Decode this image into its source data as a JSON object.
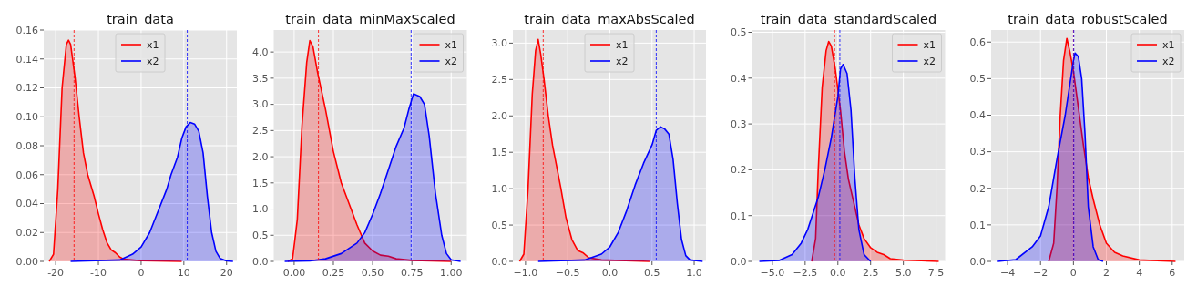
{
  "chart_data": [
    {
      "type": "area",
      "title": "train_data",
      "xlim": [
        -22.8,
        22.4
      ],
      "xticks": [
        -20,
        -10,
        0,
        10,
        20
      ],
      "ylim": [
        0,
        0.16
      ],
      "yticks": [
        {
          "value": 0,
          "label": "0.00"
        },
        0.02,
        0.04,
        0.06,
        0.08,
        {
          "value": 0.1,
          "label": "0.10"
        },
        0.12,
        0.14,
        0.16
      ],
      "grid": true,
      "legend": "top",
      "ref_lines": [
        {
          "axis": "x",
          "value": -15.7,
          "color": "#ff0000",
          "line_style": "dashed"
        },
        {
          "axis": "x",
          "value": 10.8,
          "color": "#0000ff",
          "line_style": "dashed"
        }
      ],
      "series": [
        {
          "name": "x1",
          "color": "#ff0000",
          "x": [
            -21.5,
            -20.5,
            -19.5,
            -18.5,
            -17.5,
            -17,
            -16.5,
            -15.5,
            -14.5,
            -13.5,
            -12.5,
            -11,
            -10,
            -9,
            -8,
            -7,
            -6,
            -5,
            -4,
            0,
            9.5
          ],
          "values": [
            0,
            0.005,
            0.05,
            0.12,
            0.15,
            0.153,
            0.15,
            0.128,
            0.1,
            0.075,
            0.06,
            0.045,
            0.033,
            0.022,
            0.013,
            0.008,
            0.006,
            0.003,
            0.0015,
            0.0005,
            0
          ]
        },
        {
          "name": "x2",
          "color": "#0000ff",
          "x": [
            -16.5,
            -5,
            -2,
            0,
            2,
            4,
            6,
            7,
            8.5,
            9.5,
            10.5,
            11.5,
            12.5,
            13.5,
            14.5,
            15.5,
            16.5,
            17.5,
            18.5,
            20,
            21.5
          ],
          "values": [
            0,
            0.001,
            0.005,
            0.01,
            0.02,
            0.035,
            0.05,
            0.06,
            0.072,
            0.085,
            0.093,
            0.096,
            0.095,
            0.09,
            0.075,
            0.045,
            0.02,
            0.007,
            0.002,
            0.0003,
            0
          ]
        }
      ]
    },
    {
      "type": "area",
      "title": "train_data_minMaxScaled",
      "xlim": [
        -0.13,
        1.1
      ],
      "xticks": [
        {
          "value": 0,
          "label": "0.00"
        },
        0.25,
        {
          "value": 0.5,
          "label": "0.50"
        },
        0.75,
        {
          "value": 1,
          "label": "1.00"
        }
      ],
      "ylim": [
        0,
        4.42
      ],
      "yticks": [
        {
          "value": 0,
          "label": "0.0"
        },
        0.5,
        {
          "value": 1,
          "label": "1.0"
        },
        1.5,
        {
          "value": 2,
          "label": "2.0"
        },
        2.5,
        {
          "value": 3,
          "label": "3.0"
        },
        3.5,
        {
          "value": 4,
          "label": "4.0"
        }
      ],
      "grid": true,
      "legend": "top right",
      "ref_lines": [
        {
          "axis": "x",
          "value": 0.155,
          "color": "#ff0000",
          "line_style": "dashed"
        },
        {
          "axis": "x",
          "value": 0.745,
          "color": "#0000ff",
          "line_style": "dashed"
        }
      ],
      "series": [
        {
          "name": "x1",
          "color": "#ff0000",
          "x": [
            -0.04,
            -0.01,
            0.02,
            0.05,
            0.08,
            0.1,
            0.12,
            0.15,
            0.2,
            0.25,
            0.3,
            0.35,
            0.4,
            0.45,
            0.5,
            0.55,
            0.6,
            0.65,
            0.75,
            1.0
          ],
          "values": [
            0,
            0.05,
            0.8,
            2.6,
            3.8,
            4.22,
            4.1,
            3.6,
            2.9,
            2.1,
            1.5,
            1.1,
            0.7,
            0.35,
            0.2,
            0.12,
            0.1,
            0.05,
            0.02,
            0
          ]
        },
        {
          "name": "x2",
          "color": "#0000ff",
          "x": [
            -0.06,
            0.1,
            0.2,
            0.3,
            0.4,
            0.45,
            0.5,
            0.55,
            0.6,
            0.65,
            0.7,
            0.73,
            0.76,
            0.8,
            0.83,
            0.86,
            0.9,
            0.94,
            0.97,
            1.0,
            1.06
          ],
          "values": [
            0,
            0.01,
            0.05,
            0.15,
            0.35,
            0.55,
            0.9,
            1.3,
            1.75,
            2.2,
            2.55,
            2.9,
            3.2,
            3.15,
            3.0,
            2.4,
            1.3,
            0.5,
            0.15,
            0.03,
            0
          ]
        }
      ]
    },
    {
      "type": "area",
      "title": "train_data_maxAbsScaled",
      "xlim": [
        -1.15,
        1.14
      ],
      "xticks": [
        {
          "value": -1,
          "label": "−1.0"
        },
        {
          "value": -0.5,
          "label": "−0.5"
        },
        {
          "value": 0,
          "label": "0.0"
        },
        0.5,
        {
          "value": 1,
          "label": "1.0"
        }
      ],
      "ylim": [
        0,
        3.18
      ],
      "yticks": [
        {
          "value": 0,
          "label": "0.0"
        },
        0.5,
        {
          "value": 1,
          "label": "1.0"
        },
        1.5,
        {
          "value": 2,
          "label": "2.0"
        },
        2.5,
        {
          "value": 3,
          "label": "3.0"
        }
      ],
      "grid": true,
      "legend": "top",
      "ref_lines": [
        {
          "axis": "x",
          "value": -0.79,
          "color": "#ff0000",
          "line_style": "dashed"
        },
        {
          "axis": "x",
          "value": 0.55,
          "color": "#0000ff",
          "line_style": "dashed"
        }
      ],
      "series": [
        {
          "name": "x1",
          "color": "#ff0000",
          "x": [
            -1.07,
            -1.02,
            -0.97,
            -0.92,
            -0.88,
            -0.85,
            -0.82,
            -0.78,
            -0.73,
            -0.68,
            -0.63,
            -0.58,
            -0.52,
            -0.45,
            -0.38,
            -0.32,
            -0.25,
            -0.1,
            0.47
          ],
          "values": [
            0,
            0.1,
            1.0,
            2.3,
            2.9,
            3.05,
            2.85,
            2.5,
            2.0,
            1.6,
            1.3,
            1.0,
            0.6,
            0.3,
            0.15,
            0.12,
            0.05,
            0.02,
            0
          ]
        },
        {
          "name": "x2",
          "color": "#0000ff",
          "x": [
            -0.85,
            -0.3,
            -0.1,
            0,
            0.1,
            0.2,
            0.3,
            0.4,
            0.5,
            0.55,
            0.6,
            0.65,
            0.7,
            0.75,
            0.8,
            0.85,
            0.9,
            0.95,
            1.1
          ],
          "values": [
            0,
            0.02,
            0.1,
            0.2,
            0.4,
            0.7,
            1.05,
            1.35,
            1.6,
            1.8,
            1.85,
            1.82,
            1.75,
            1.4,
            0.8,
            0.3,
            0.08,
            0.02,
            0
          ]
        }
      ]
    },
    {
      "type": "area",
      "title": "train_data_standardScaled",
      "xlim": [
        -6.56,
        8.19
      ],
      "xticks": [
        {
          "value": -5,
          "label": "−5.0"
        },
        {
          "value": -2.5,
          "label": "−2.5"
        },
        {
          "value": 0,
          "label": "0.0"
        },
        2.5,
        {
          "value": 5,
          "label": "5.0"
        },
        7.5
      ],
      "ylim": [
        0,
        0.505
      ],
      "yticks": [
        {
          "value": 0,
          "label": "0.0"
        },
        0.1,
        0.2,
        0.3,
        0.4,
        0.5
      ],
      "grid": true,
      "legend": "top right",
      "ref_lines": [
        {
          "axis": "x",
          "value": -0.25,
          "color": "#ff0000",
          "line_style": "dashed"
        },
        {
          "axis": "x",
          "value": 0.15,
          "color": "#0000ff",
          "line_style": "dashed"
        }
      ],
      "series": [
        {
          "name": "x1",
          "color": "#ff0000",
          "x": [
            -2.0,
            -1.7,
            -1.5,
            -1.2,
            -0.9,
            -0.7,
            -0.5,
            -0.2,
            0.2,
            0.5,
            0.8,
            1.2,
            1.6,
            2.0,
            2.5,
            3.0,
            3.5,
            4,
            5,
            7.7
          ],
          "values": [
            0,
            0.05,
            0.2,
            0.38,
            0.46,
            0.48,
            0.47,
            0.42,
            0.33,
            0.24,
            0.18,
            0.13,
            0.08,
            0.05,
            0.03,
            0.02,
            0.015,
            0.006,
            0.003,
            0
          ]
        },
        {
          "name": "x2",
          "color": "#0000ff",
          "x": [
            -6,
            -4.5,
            -3.5,
            -2.8,
            -2.3,
            -1.5,
            -1,
            -0.5,
            0,
            0.2,
            0.4,
            0.7,
            1,
            1.3,
            1.6,
            2.0,
            2.5
          ],
          "values": [
            0,
            0.002,
            0.015,
            0.04,
            0.07,
            0.14,
            0.2,
            0.27,
            0.36,
            0.42,
            0.43,
            0.41,
            0.33,
            0.18,
            0.07,
            0.015,
            0
          ]
        }
      ]
    },
    {
      "type": "area",
      "title": "train_data_robustScaled",
      "xlim": [
        -5.0,
        6.73
      ],
      "xticks": [
        {
          "value": -4,
          "label": "−4"
        },
        {
          "value": -2,
          "label": "−2"
        },
        0,
        2,
        4,
        6
      ],
      "ylim": [
        0,
        0.633
      ],
      "yticks": [
        {
          "value": 0,
          "label": "0.0"
        },
        0.1,
        0.2,
        0.3,
        0.4,
        0.5,
        0.6
      ],
      "grid": true,
      "legend": "top right",
      "ref_lines": [
        {
          "axis": "x",
          "value": 0,
          "color": "#ff0000",
          "line_style": "dashed"
        },
        {
          "axis": "x",
          "value": 0.02,
          "color": "#0000ff",
          "line_style": "dashed"
        }
      ],
      "series": [
        {
          "name": "x1",
          "color": "#ff0000",
          "x": [
            -1.5,
            -1.2,
            -1.0,
            -0.8,
            -0.6,
            -0.4,
            -0.2,
            0,
            0.3,
            0.6,
            0.9,
            1.2,
            1.6,
            2,
            2.5,
            3,
            4,
            6.2
          ],
          "values": [
            0,
            0.05,
            0.2,
            0.4,
            0.55,
            0.61,
            0.57,
            0.52,
            0.42,
            0.32,
            0.23,
            0.17,
            0.1,
            0.05,
            0.025,
            0.015,
            0.004,
            0
          ]
        },
        {
          "name": "x2",
          "color": "#0000ff",
          "x": [
            -4.6,
            -3.5,
            -2.5,
            -2,
            -1.5,
            -1,
            -0.5,
            0,
            0.1,
            0.3,
            0.5,
            0.7,
            0.9,
            1.2,
            1.5,
            1.8
          ],
          "values": [
            0,
            0.005,
            0.04,
            0.07,
            0.15,
            0.28,
            0.4,
            0.55,
            0.57,
            0.56,
            0.5,
            0.35,
            0.15,
            0.04,
            0.005,
            0
          ]
        }
      ]
    }
  ]
}
